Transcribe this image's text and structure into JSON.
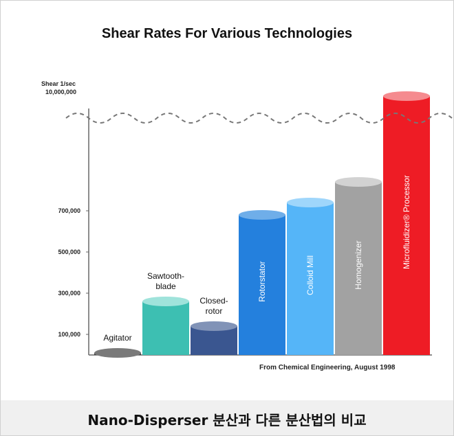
{
  "chart_data": {
    "type": "bar",
    "title": "Shear Rates For Various Technologies",
    "ylabel": "Shear 1/sec",
    "y_top_label": "10,000,000",
    "y_ticks": [
      "100,000",
      "300,000",
      "500,000",
      "700,000"
    ],
    "axis_break": true,
    "categories": [
      "Agitator",
      "Sawtooth-blade",
      "Closed-rotor",
      "Rotorstator",
      "Colloid Mill",
      "Homogenizer",
      "Microfluidizer® Processor"
    ],
    "series": [
      {
        "values": [
          10000,
          260000,
          140000,
          680000,
          740000,
          840000,
          10000000
        ]
      }
    ],
    "label_lines": [
      [
        "Agitator"
      ],
      [
        "Sawtooth-",
        "blade"
      ],
      [
        "Closed-",
        "rotor"
      ],
      [
        "Rotorstator"
      ],
      [
        "Colloid Mill"
      ],
      [
        "Homogenizer"
      ],
      [
        "Microfluidizer® Processor"
      ]
    ],
    "label_position": [
      "above",
      "above",
      "above",
      "inside",
      "inside",
      "inside",
      "inside"
    ],
    "colors": [
      "#3b3b3b",
      "#3dbfb2",
      "#3a5690",
      "#2480dd",
      "#55b5f8",
      "#a2a2a2",
      "#ee1c25"
    ],
    "top_colors": [
      "#7a7a7a",
      "#9fe3db",
      "#8193b7",
      "#6faee9",
      "#9fd6fb",
      "#d2d2d2",
      "#f58b8f"
    ],
    "source": "From Chemical Engineering, August 1998"
  },
  "caption": "Nano-Disperser 분산과 다른 분산법의 비교"
}
